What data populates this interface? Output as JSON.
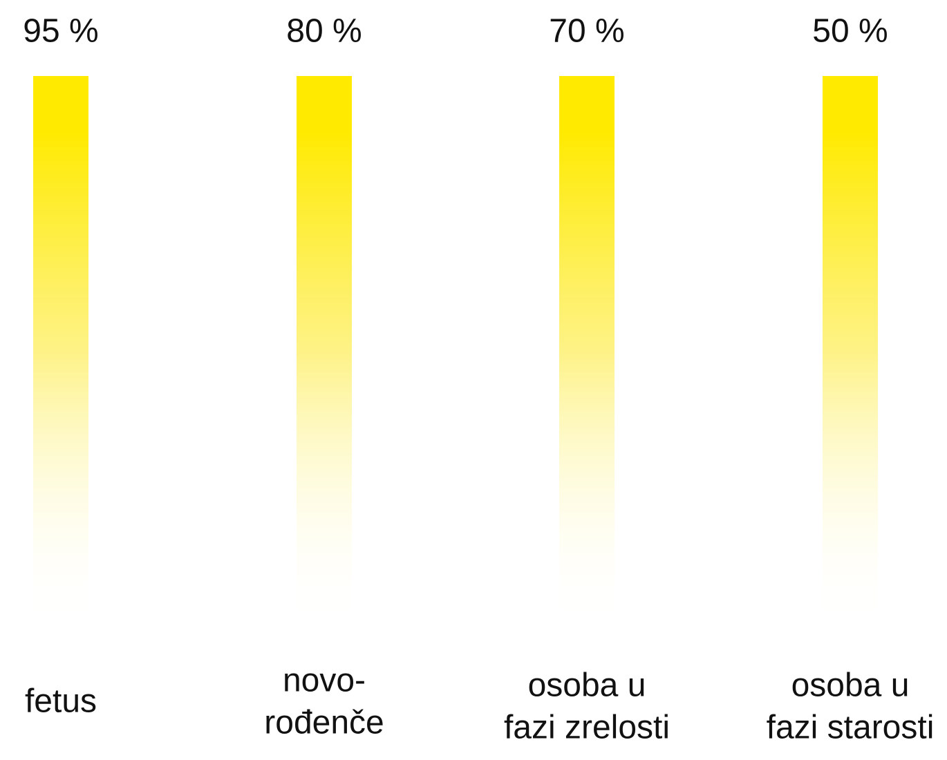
{
  "items": [
    {
      "value": "95 %",
      "label": [
        "fetus"
      ]
    },
    {
      "value": "80 %",
      "label": [
        "novo-",
        "rođenče"
      ]
    },
    {
      "value": "70 %",
      "label": [
        "osoba u",
        "fazi zrelosti"
      ]
    },
    {
      "value": "50 %",
      "label": [
        "osoba u",
        "fazi starosti"
      ]
    }
  ]
}
